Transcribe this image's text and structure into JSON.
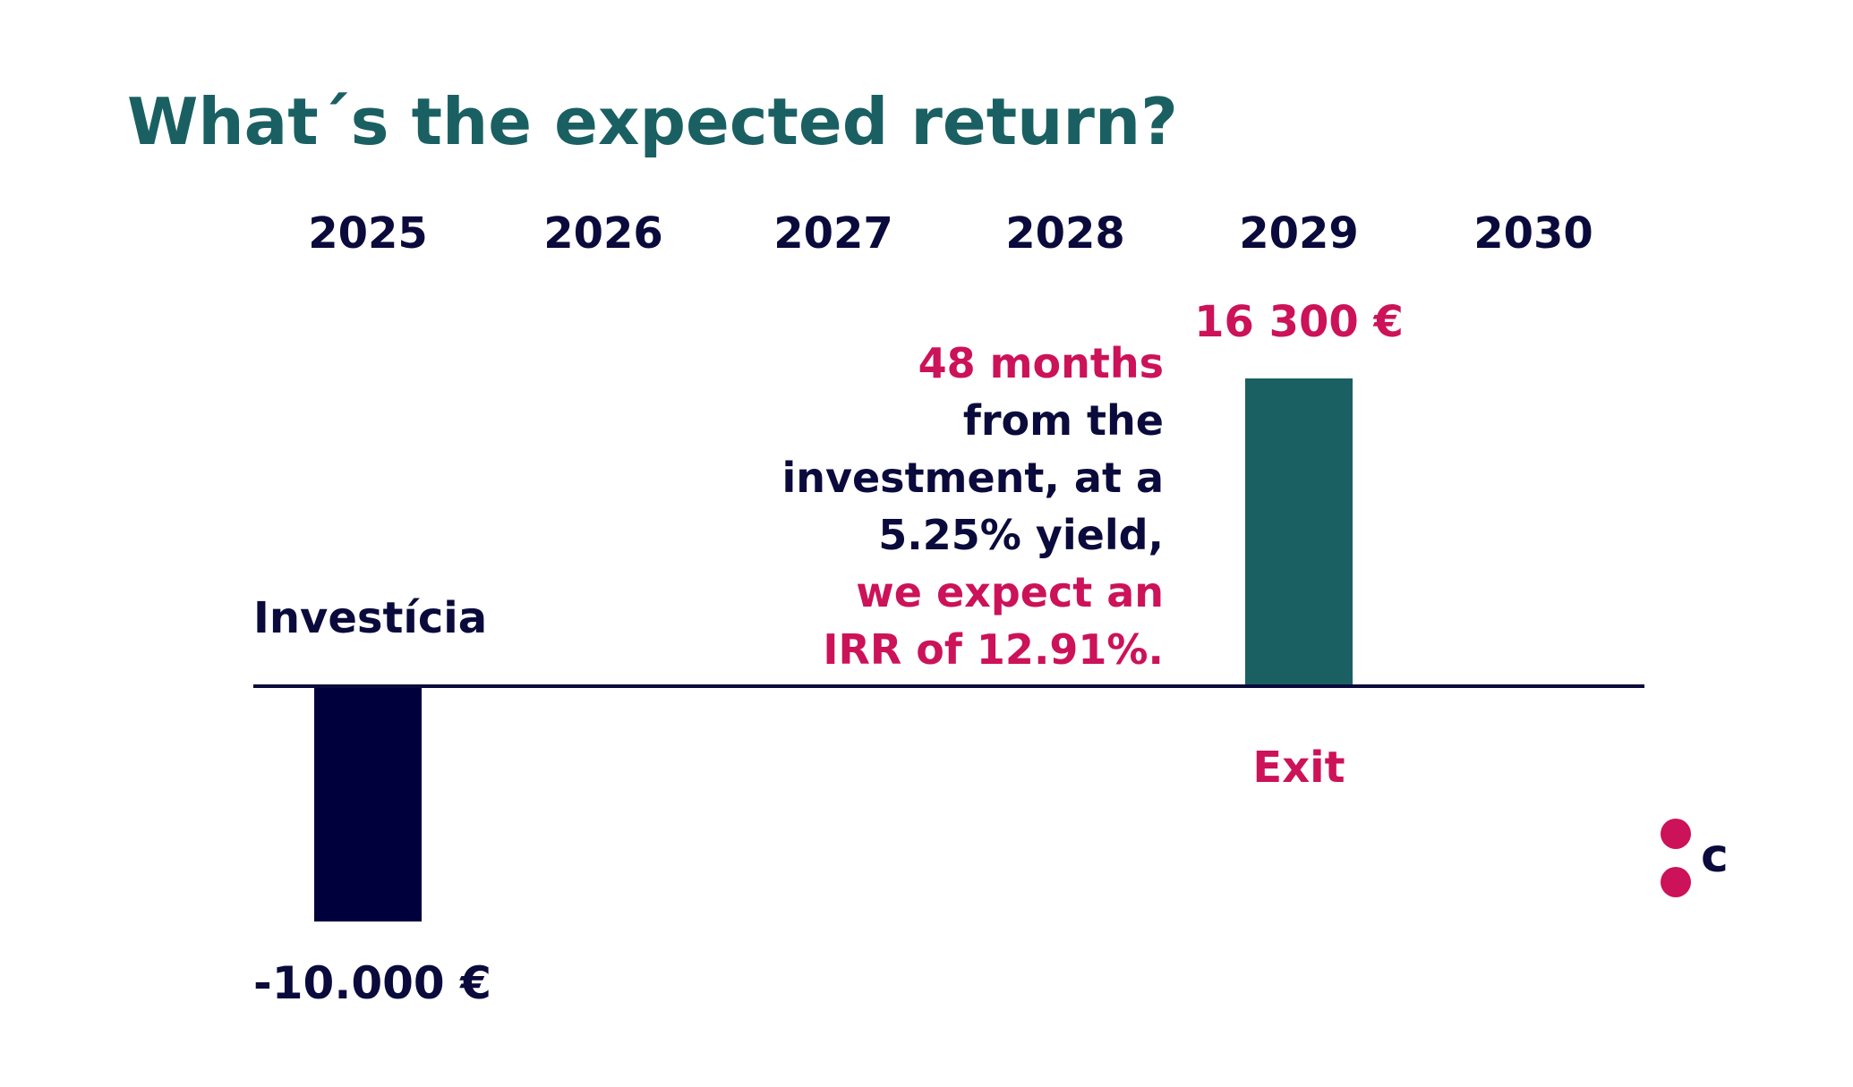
{
  "title": "What´s the expected return?",
  "annotation": {
    "line1": "48 months",
    "line2": "from the",
    "line3": "investment, at a",
    "line4": "5.25% yield,",
    "line5": "we expect an",
    "line6": "IRR of 12.91%."
  },
  "logo": {
    "letter": "c",
    "dot_color": "#cc1259",
    "letter_color": "#0a0a3c"
  },
  "colors": {
    "title": "#1a6063",
    "negative_bar": "#00003d",
    "positive_bar": "#1a6063",
    "accent": "#cc1259",
    "text": "#0a0a3c"
  },
  "chart_data": {
    "type": "bar",
    "categories": [
      "2025",
      "2026",
      "2027",
      "2028",
      "2029",
      "2030"
    ],
    "values": [
      -10000,
      0,
      0,
      0,
      16300,
      0
    ],
    "ylim": [
      -10000,
      16300
    ],
    "grid": false,
    "bar_labels": [
      {
        "category": "2025",
        "value_label": "-10.000 €",
        "caption": "Investícia"
      },
      {
        "category": "2029",
        "value_label": "16 300 €",
        "caption": "Exit"
      }
    ]
  }
}
